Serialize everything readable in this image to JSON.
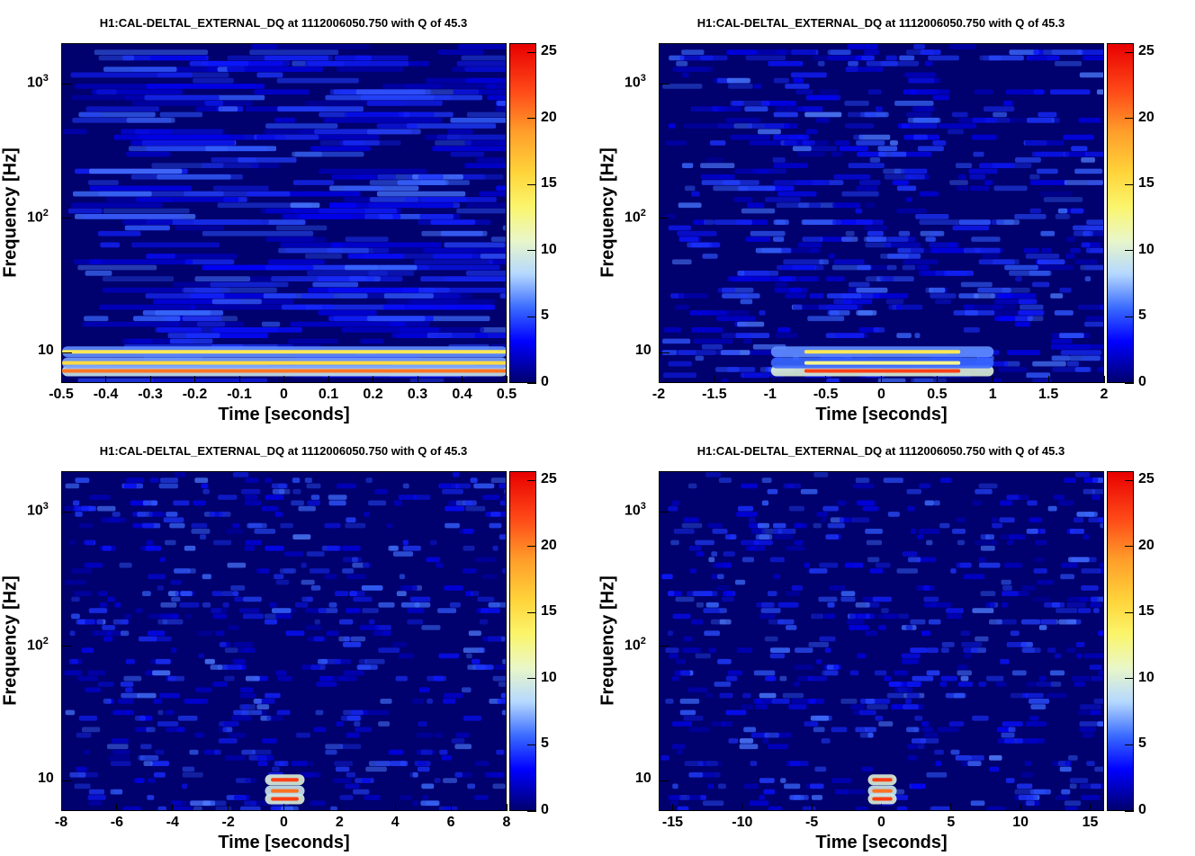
{
  "chart_data": [
    {
      "type": "heatmap",
      "title": "H1:CAL-DELTAL_EXTERNAL_DQ at 1112006050.750 with Q of 45.3",
      "xlabel": "Time [seconds]",
      "ylabel": "Frequency [Hz]",
      "xlim": [
        -0.5,
        0.5
      ],
      "ylim": [
        6,
        2000
      ],
      "yscale": "log",
      "x_ticks": [
        "-0.5",
        "-0.4",
        "-0.3",
        "-0.2",
        "-0.1",
        "0",
        "0.1",
        "0.2",
        "0.3",
        "0.4",
        "0.5"
      ],
      "y_ticks": [
        {
          "base": "10",
          "exp": "3"
        },
        {
          "base": "10",
          "exp": "2"
        },
        {
          "base": "10",
          "exp": ""
        }
      ],
      "colorbar": {
        "range": [
          0,
          25
        ],
        "ticks": [
          "25",
          "20",
          "15",
          "10",
          "5",
          "0"
        ]
      },
      "features": [
        {
          "freq": 7.5,
          "energy": 20,
          "extent": "full"
        },
        {
          "freq": 8.6,
          "energy": 15,
          "extent": "full"
        },
        {
          "freq": 10.4,
          "energy": 14,
          "extent": "full"
        }
      ]
    },
    {
      "type": "heatmap",
      "title": "H1:CAL-DELTAL_EXTERNAL_DQ at 1112006050.750 with Q of 45.3",
      "xlabel": "Time [seconds]",
      "ylabel": "Frequency [Hz]",
      "xlim": [
        -2,
        2
      ],
      "ylim": [
        6,
        2000
      ],
      "yscale": "log",
      "x_ticks": [
        "-2",
        "-1.5",
        "-1",
        "-0.5",
        "0",
        "0.5",
        "1",
        "1.5",
        "2"
      ],
      "y_ticks": [
        {
          "base": "10",
          "exp": "3"
        },
        {
          "base": "10",
          "exp": "2"
        },
        {
          "base": "10",
          "exp": ""
        }
      ],
      "colorbar": {
        "range": [
          0,
          25
        ],
        "ticks": [
          "25",
          "20",
          "15",
          "10",
          "5",
          "0"
        ]
      },
      "features": [
        {
          "freq": 7.5,
          "energy": 22,
          "extent": "center"
        },
        {
          "freq": 8.6,
          "energy": 12,
          "extent": "center"
        },
        {
          "freq": 10.4,
          "energy": 14,
          "extent": "center"
        }
      ]
    },
    {
      "type": "heatmap",
      "title": "H1:CAL-DELTAL_EXTERNAL_DQ at 1112006050.750 with Q of 45.3",
      "xlabel": "Time [seconds]",
      "ylabel": "Frequency [Hz]",
      "xlim": [
        -8,
        8
      ],
      "ylim": [
        6,
        2000
      ],
      "yscale": "log",
      "x_ticks": [
        "-8",
        "-6",
        "-4",
        "-2",
        "0",
        "2",
        "4",
        "6",
        "8"
      ],
      "y_ticks": [
        {
          "base": "10",
          "exp": "3"
        },
        {
          "base": "10",
          "exp": "2"
        },
        {
          "base": "10",
          "exp": ""
        }
      ],
      "colorbar": {
        "range": [
          0,
          25
        ],
        "ticks": [
          "25",
          "20",
          "15",
          "10",
          "5",
          "0"
        ]
      },
      "features": [
        {
          "freq": 7.5,
          "energy": 22,
          "extent": "spot"
        },
        {
          "freq": 8.6,
          "energy": 20,
          "extent": "spot"
        },
        {
          "freq": 10.4,
          "energy": 22,
          "extent": "spot"
        }
      ]
    },
    {
      "type": "heatmap",
      "title": "H1:CAL-DELTAL_EXTERNAL_DQ at 1112006050.750 with Q of 45.3",
      "xlabel": "Time [seconds]",
      "ylabel": "Frequency [Hz]",
      "xlim": [
        -16,
        16
      ],
      "ylim": [
        6,
        2000
      ],
      "yscale": "log",
      "x_ticks": [
        "-15",
        "-10",
        "-5",
        "0",
        "5",
        "10",
        "15"
      ],
      "y_ticks": [
        {
          "base": "10",
          "exp": "3"
        },
        {
          "base": "10",
          "exp": "2"
        },
        {
          "base": "10",
          "exp": ""
        }
      ],
      "colorbar": {
        "range": [
          0,
          25
        ],
        "ticks": [
          "25",
          "20",
          "15",
          "10",
          "5",
          "0"
        ]
      },
      "features": [
        {
          "freq": 7.5,
          "energy": 22,
          "extent": "spot"
        },
        {
          "freq": 8.6,
          "energy": 20,
          "extent": "spot"
        },
        {
          "freq": 10.4,
          "energy": 22,
          "extent": "spot"
        }
      ]
    }
  ]
}
